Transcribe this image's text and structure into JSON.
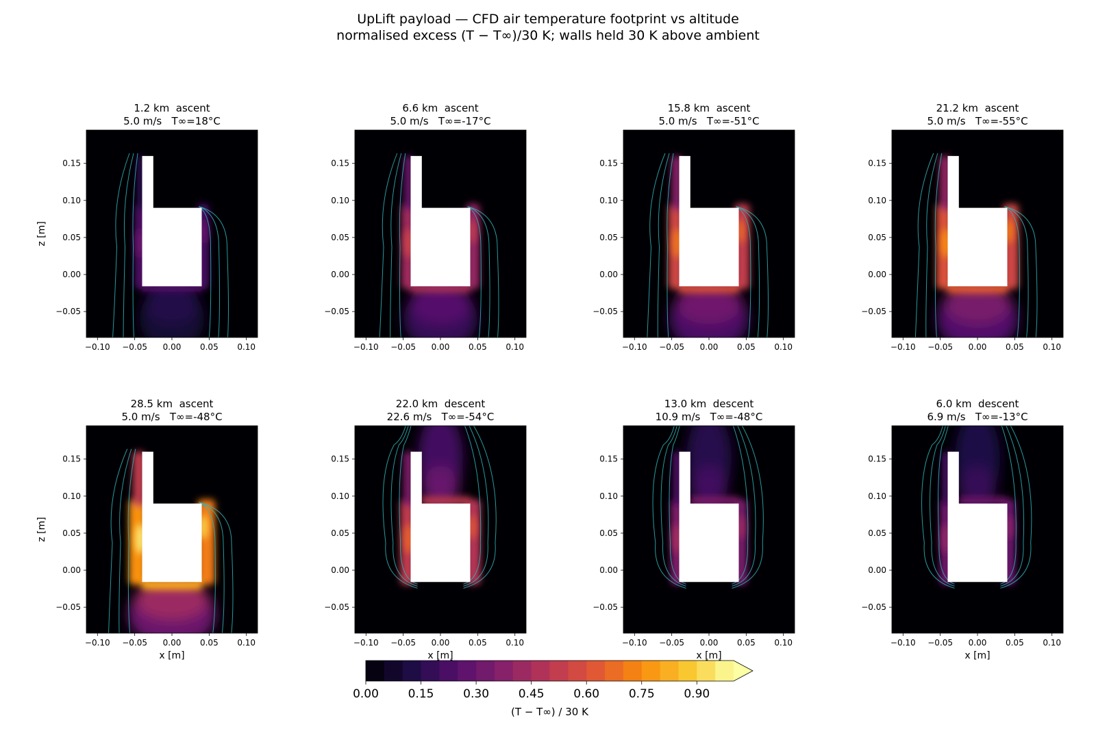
{
  "figure": {
    "title_line1": "UpLift payload — CFD air temperature footprint vs altitude",
    "title_line2": "normalised excess (T − T∞)/30 K; walls held 30 K above ambient"
  },
  "chart_data": {
    "type": "heatmap",
    "xlabel": "x [m]",
    "ylabel": "z [m]",
    "xlim": [
      -0.115,
      0.115
    ],
    "ylim": [
      -0.085,
      0.195
    ],
    "xticks": [
      -0.1,
      -0.05,
      0.0,
      0.05,
      0.1
    ],
    "xtick_labels": [
      "−0.10",
      "−0.05",
      "0.00",
      "0.05",
      "0.10"
    ],
    "yticks": [
      -0.05,
      0.0,
      0.05,
      0.1,
      0.15
    ],
    "ytick_labels": [
      "−0.05",
      "0.00",
      "0.05",
      "0.10",
      "0.15"
    ],
    "payload_outline": [
      [
        -0.04,
        0.16
      ],
      [
        -0.025,
        0.16
      ],
      [
        -0.025,
        0.09
      ],
      [
        0.04,
        0.09
      ],
      [
        0.04,
        -0.016
      ],
      [
        -0.04,
        -0.016
      ]
    ],
    "panels": [
      {
        "altitude": "1.2 km",
        "phase": "ascent",
        "speed": "5.0 m/s",
        "t_inf": "T∞=18°C",
        "peak": 0.3,
        "wake": "down"
      },
      {
        "altitude": "6.6 km",
        "phase": "ascent",
        "speed": "5.0 m/s",
        "t_inf": "T∞=-17°C",
        "peak": 0.55,
        "wake": "down"
      },
      {
        "altitude": "15.8 km",
        "phase": "ascent",
        "speed": "5.0 m/s",
        "t_inf": "T∞=-51°C",
        "peak": 0.7,
        "wake": "down"
      },
      {
        "altitude": "21.2 km",
        "phase": "ascent",
        "speed": "5.0 m/s",
        "t_inf": "T∞=-55°C",
        "peak": 0.75,
        "wake": "down"
      },
      {
        "altitude": "28.5 km",
        "phase": "ascent",
        "speed": "5.0 m/s",
        "t_inf": "T∞=-48°C",
        "peak": 0.95,
        "wake": "down"
      },
      {
        "altitude": "22.0 km",
        "phase": "descent",
        "speed": "22.6 m/s",
        "t_inf": "T∞=-54°C",
        "peak": 0.65,
        "wake": "up"
      },
      {
        "altitude": "13.0 km",
        "phase": "descent",
        "speed": "10.9 m/s",
        "t_inf": "T∞=-48°C",
        "peak": 0.45,
        "wake": "up"
      },
      {
        "altitude": "6.0 km",
        "phase": "descent",
        "speed": "6.9 m/s",
        "t_inf": "T∞=-13°C",
        "peak": 0.4,
        "wake": "up"
      }
    ],
    "colorbar": {
      "label": "(T − T∞) / 30 K",
      "range": [
        0.0,
        1.0
      ],
      "levels": 20,
      "extend": "max",
      "ticks": [
        "0.00",
        "0.15",
        "0.30",
        "0.45",
        "0.60",
        "0.75",
        "0.90"
      ],
      "colormap": "inferno",
      "contour_color": "#2fb5b8"
    },
    "overlap_labels": [
      "x [m]",
      "x [m]"
    ]
  }
}
